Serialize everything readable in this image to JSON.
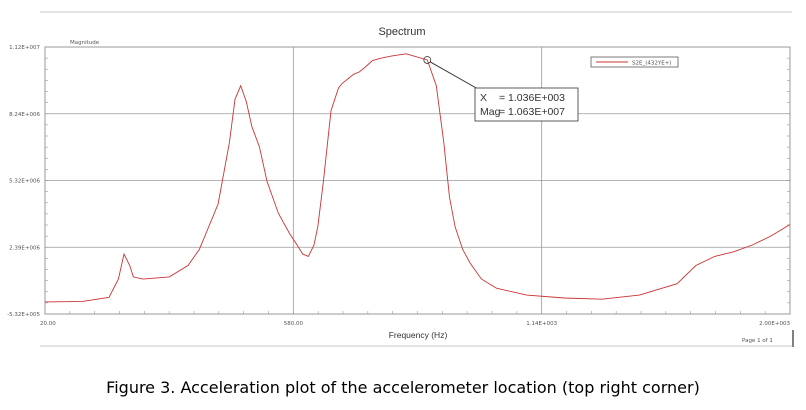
{
  "chart_data": {
    "type": "line",
    "title": "Spectrum",
    "ylabel": "Magnitude",
    "xlabel": "Frequency (Hz)",
    "xlim": [
      20,
      2000
    ],
    "ylim": [
      -532000,
      11200000
    ],
    "x_ticks": [
      "20.00",
      "580.00",
      "1.14E+003",
      "2.00E+003"
    ],
    "y_ticks": [
      "1.12E+007",
      "8.24E+006",
      "5.32E+006",
      "2.39E+006",
      "-5.32E+005"
    ],
    "series": [
      {
        "name": "S2E_(432YE+)",
        "color": "#cc3333",
        "x": [
          20,
          120,
          190,
          215,
          230,
          245,
          255,
          280,
          350,
          400,
          430,
          480,
          510,
          525,
          540,
          555,
          570,
          590,
          610,
          640,
          670,
          690,
          705,
          720,
          735,
          745,
          760,
          780,
          800,
          810,
          825,
          840,
          855,
          870,
          890,
          910,
          940,
          980,
          1036,
          1060,
          1080,
          1095,
          1110,
          1130,
          1150,
          1180,
          1220,
          1300,
          1400,
          1500,
          1600,
          1700,
          1750,
          1800,
          1850,
          1900,
          1950,
          2000
        ],
        "y": [
          0,
          20000,
          200000,
          1000000,
          2100000,
          1600000,
          1100000,
          1000000,
          1100000,
          1600000,
          2300000,
          4300000,
          7000000,
          8900000,
          9500000,
          8800000,
          7700000,
          6800000,
          5300000,
          3900000,
          3000000,
          2500000,
          2100000,
          2000000,
          2500000,
          3300000,
          5300000,
          8400000,
          9400000,
          9600000,
          9800000,
          10000000,
          10100000,
          10300000,
          10600000,
          10700000,
          10800000,
          10900000,
          10630000,
          9500000,
          7000000,
          4600000,
          3300000,
          2300000,
          1700000,
          1000000,
          600000,
          300000,
          170000,
          120000,
          300000,
          800000,
          1600000,
          2000000,
          2200000,
          2500000,
          2900000,
          3400000
        ]
      }
    ],
    "annotation": {
      "x_label": "X",
      "x_value": "= 1.036E+003",
      "mag_label": "Mag",
      "mag_value": "= 1.063E+007",
      "peak_x": 1036,
      "peak_y": 10630000
    },
    "grid": true,
    "legend_position": "top-right"
  },
  "footer": {
    "page_label": "Page 1 of 1"
  },
  "caption": "Figure 3.  Acceleration plot of the accelerometer location (top right corner)"
}
